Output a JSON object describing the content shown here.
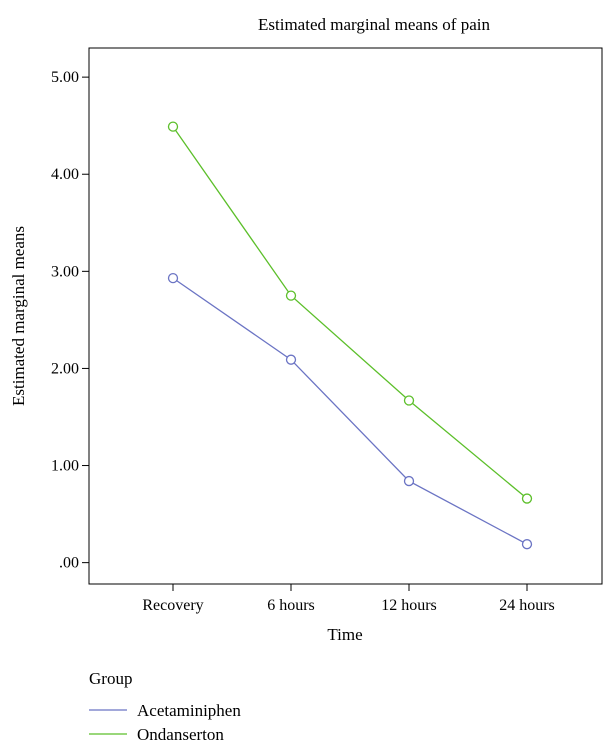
{
  "chart_data": {
    "type": "line",
    "title": "Estimated marginal means of pain",
    "xlabel": "Time",
    "ylabel": "Estimated marginal means",
    "categories": [
      "Recovery",
      "6 hours",
      "12 hours",
      "24 hours"
    ],
    "y_ticks": [
      ".00",
      "1.00",
      "2.00",
      "3.00",
      "4.00",
      "5.00"
    ],
    "ylim": [
      -0.22,
      5.3
    ],
    "grid": false,
    "legend_title": "Group",
    "legend_position": "bottom-left",
    "series": [
      {
        "name": "Acetaminiphen",
        "color": "#6b74c4",
        "values": [
          2.93,
          2.09,
          0.84,
          0.19
        ]
      },
      {
        "name": "Ondanserton",
        "color": "#5cbf2a",
        "values": [
          4.49,
          2.75,
          1.67,
          0.66
        ]
      }
    ]
  }
}
